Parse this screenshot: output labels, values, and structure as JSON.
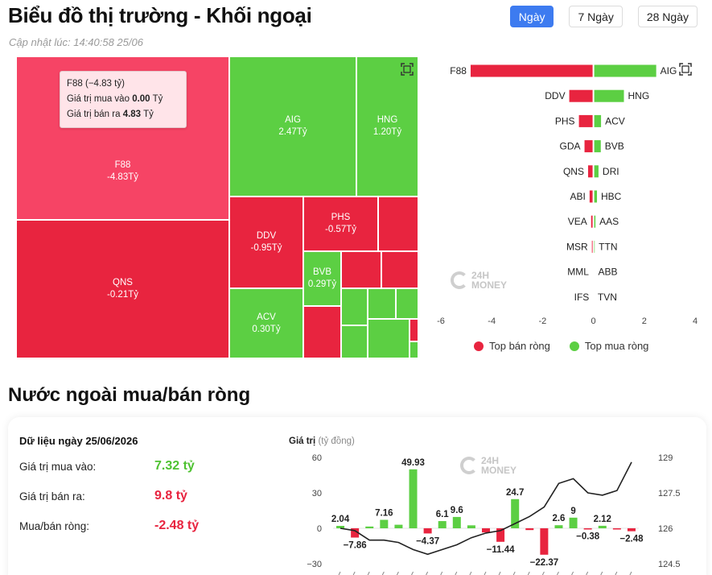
{
  "header": {
    "title": "Biểu đồ thị trường - Khối ngoại",
    "update_label": "Cập nhật lúc: 14:40:58 25/06",
    "ranges": [
      "Ngày",
      "7 Ngày",
      "28 Ngày"
    ],
    "active_range": "Ngày"
  },
  "treemap": {
    "tiles": [
      {
        "code": "F88",
        "value": "-4.83Tỷ",
        "side": "sell"
      },
      {
        "code": "QNS",
        "value": "-0.21Tỷ",
        "side": "sell"
      },
      {
        "code": "AIG",
        "value": "2.47Tỷ",
        "side": "buy"
      },
      {
        "code": "HNG",
        "value": "1.20Tỷ",
        "side": "buy"
      },
      {
        "code": "DDV",
        "value": "-0.95Tỷ",
        "side": "sell"
      },
      {
        "code": "PHS",
        "value": "-0.57Tỷ",
        "side": "sell"
      },
      {
        "code": "BVB",
        "value": "0.29Tỷ",
        "side": "buy"
      },
      {
        "code": "ACV",
        "value": "0.30Tỷ",
        "side": "buy"
      }
    ],
    "tooltip": {
      "title": "F88 (−4.83 tỷ)",
      "buy_label": "Giá trị mua vào",
      "buy_value": "0.00",
      "sell_label": "Giá trị bán ra",
      "sell_value": "4.83",
      "unit": "Tỷ"
    }
  },
  "top_chart": {
    "type": "bar",
    "sellers": [
      {
        "code": "F88",
        "value": -4.83
      },
      {
        "code": "DDV",
        "value": -0.95
      },
      {
        "code": "PHS",
        "value": -0.57
      },
      {
        "code": "GDA",
        "value": -0.35
      },
      {
        "code": "QNS",
        "value": -0.21
      },
      {
        "code": "ABI",
        "value": -0.15
      },
      {
        "code": "VEA",
        "value": -0.09
      },
      {
        "code": "MSR",
        "value": -0.06
      },
      {
        "code": "MML",
        "value": -0.02
      },
      {
        "code": "IFS",
        "value": -0.01
      }
    ],
    "buyers": [
      {
        "code": "AIG",
        "value": 2.47
      },
      {
        "code": "HNG",
        "value": 1.2
      },
      {
        "code": "ACV",
        "value": 0.3
      },
      {
        "code": "BVB",
        "value": 0.29
      },
      {
        "code": "DRI",
        "value": 0.2
      },
      {
        "code": "HBC",
        "value": 0.14
      },
      {
        "code": "AAS",
        "value": 0.08
      },
      {
        "code": "TTN",
        "value": 0.05
      },
      {
        "code": "ABB",
        "value": 0.03
      },
      {
        "code": "TVN",
        "value": 0.01
      }
    ],
    "x_ticks": [
      "-6",
      "-4",
      "-2",
      "0",
      "2",
      "4"
    ],
    "xlim": [
      -6,
      4
    ],
    "legend": [
      "Top bán ròng",
      "Top mua ròng"
    ],
    "colors": {
      "sell": "#e8243f",
      "buy": "#5ccf43"
    }
  },
  "net_section": {
    "title": "Nước ngoài mua/bán ròng",
    "date_label": "Dữ liệu ngày 25/06/2026",
    "buy_label": "Giá trị mua vào:",
    "buy_value": "7.32 tỷ",
    "sell_label": "Giá trị bán ra:",
    "sell_value": "9.8 tỷ",
    "net_label": "Mua/bán ròng:",
    "net_value": "-2.48 tỷ"
  },
  "chart_data": {
    "type": "bar",
    "title": "Giá trị",
    "unit": "(tỷ đồng)",
    "ylim": [
      -30,
      60
    ],
    "y_ticks": [
      "60",
      "30",
      "0",
      "−30"
    ],
    "y2lim": [
      124.5,
      129
    ],
    "y2_ticks": [
      "129",
      "127.5",
      "126",
      "124.5"
    ],
    "series": [
      {
        "values": [
          2.04,
          -7.86,
          1.5,
          7.16,
          3.0,
          49.93,
          -4.37,
          6.1,
          9.6,
          2.5,
          -3.5,
          -11.44,
          24.7,
          -1.5,
          -22.37,
          2.6,
          9.0,
          -0.38,
          2.12,
          -1.0,
          -2.48
        ]
      },
      {
        "values": [
          126.0,
          125.9,
          125.5,
          125.5,
          125.4,
          125.1,
          124.9,
          125.1,
          125.3,
          125.6,
          125.8,
          125.9,
          126.2,
          126.5,
          126.9,
          127.9,
          128.1,
          127.5,
          127.4,
          127.6,
          128.8
        ]
      }
    ],
    "data_labels": [
      "2.04",
      "−7.86",
      "7.16",
      "49.93",
      "−4.37",
      "6.1",
      "9.6",
      "−11.44",
      "24.7",
      "−22.37",
      "2.6",
      "9",
      "−0.38",
      "2.12",
      "−2.48"
    ],
    "label_index": [
      0,
      1,
      3,
      5,
      6,
      7,
      8,
      11,
      12,
      14,
      15,
      16,
      17,
      18,
      20
    ]
  },
  "watermark": {
    "line1": "24H",
    "line2": "MONEY"
  }
}
